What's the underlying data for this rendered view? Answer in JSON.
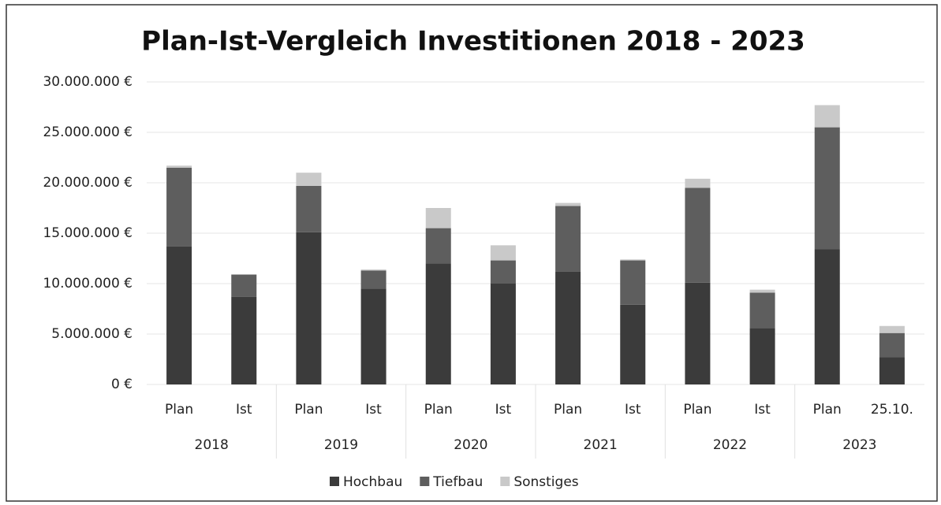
{
  "chart_data": {
    "type": "stacked_bar",
    "title": "Plan-Ist-Vergleich Investitionen 2018 - 2023",
    "categories": [
      "Plan",
      "Ist",
      "Plan",
      "Ist",
      "Plan",
      "Ist",
      "Plan",
      "Ist",
      "Plan",
      "Ist",
      "Plan",
      "25.10."
    ],
    "groups": [
      "2018",
      "2019",
      "2020",
      "2021",
      "2022",
      "2023"
    ],
    "series": [
      {
        "name": "Hochbau",
        "color": "#3b3b3b",
        "values": [
          13700000,
          8700000,
          15100000,
          9500000,
          12000000,
          10000000,
          11200000,
          7900000,
          10100000,
          5600000,
          13400000,
          2700000
        ]
      },
      {
        "name": "Tiefbau",
        "color": "#5e5e5e",
        "values": [
          7800000,
          2200000,
          4600000,
          1800000,
          3500000,
          2300000,
          6500000,
          4400000,
          9400000,
          3500000,
          12100000,
          2400000
        ]
      },
      {
        "name": "Sonstiges",
        "color": "#c9c9c9",
        "values": [
          200000,
          0,
          1300000,
          100000,
          2000000,
          1500000,
          300000,
          100000,
          900000,
          300000,
          2200000,
          700000
        ]
      }
    ],
    "ylim": [
      0,
      30000000
    ],
    "yticks": [
      {
        "value": 0,
        "label": "0 €"
      },
      {
        "value": 5000000,
        "label": "5.000.000 €"
      },
      {
        "value": 10000000,
        "label": "10.000.000 €"
      },
      {
        "value": 15000000,
        "label": "15.000.000 €"
      },
      {
        "value": 20000000,
        "label": "20.000.000 €"
      },
      {
        "value": 25000000,
        "label": "25.000.000 €"
      },
      {
        "value": 30000000,
        "label": "30.000.000 €"
      }
    ],
    "grid": true,
    "legend": "bottom"
  }
}
